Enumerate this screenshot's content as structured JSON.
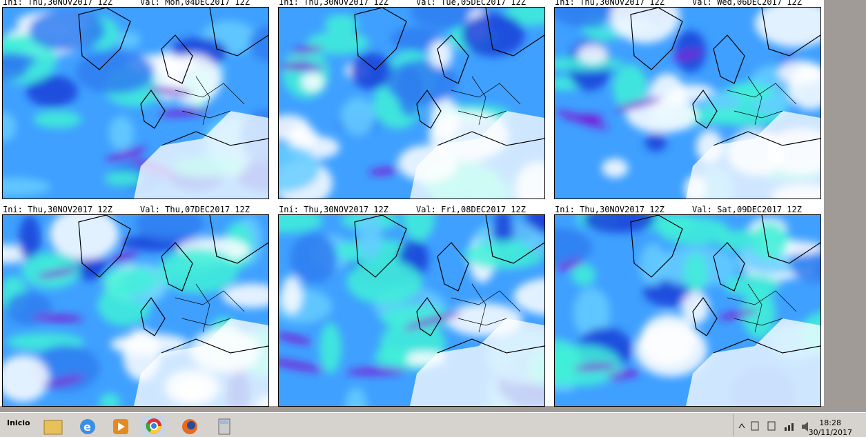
{
  "panels": [
    {
      "ini": "Ini: Thu,30NOV2017 12Z",
      "val": "Val: Mon,04DEC2017 12Z"
    },
    {
      "ini": "Ini: Thu,30NOV2017 12Z",
      "val": "Val: Tue,05DEC2017 12Z"
    },
    {
      "ini": "Ini: Thu,30NOV2017 12Z",
      "val": "Val: Wed,06DEC2017 12Z"
    },
    {
      "ini": "Ini: Thu,30NOV2017 12Z",
      "val": "Val: Thu,07DEC2017 12Z"
    },
    {
      "ini": "Ini: Thu,30NOV2017 12Z",
      "val": "Val: Fri,08DEC2017 12Z"
    },
    {
      "ini": "Ini: Thu,30NOV2017 12Z",
      "val": "Val: Sat,09DEC2017 12Z"
    }
  ],
  "taskbar": {
    "start": "Inicio",
    "time": "18:28",
    "date": "30/11/2017"
  }
}
